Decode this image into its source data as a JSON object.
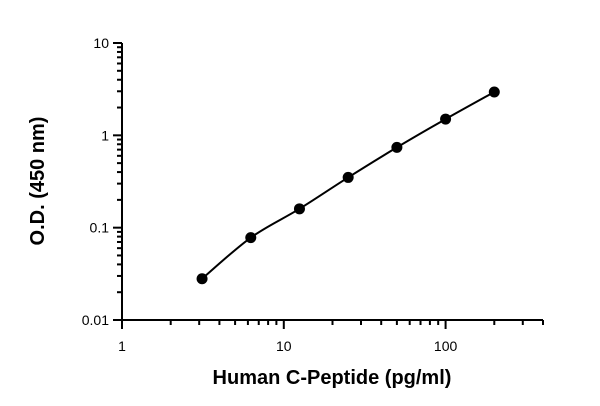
{
  "chart_data": {
    "type": "scatter",
    "xlabel": "Human C-Peptide (pg/ml)",
    "ylabel": "O.D. (450 nm)",
    "x_scale": "log",
    "y_scale": "log",
    "xlim": [
      1,
      400
    ],
    "ylim": [
      0.01,
      10
    ],
    "x_ticks": [
      {
        "value": 1,
        "label": "1"
      },
      {
        "value": 10,
        "label": "10"
      },
      {
        "value": 100,
        "label": "100"
      }
    ],
    "y_ticks": [
      {
        "value": 0.01,
        "label": "0.01"
      },
      {
        "value": 0.1,
        "label": "0.1"
      },
      {
        "value": 1,
        "label": "1"
      },
      {
        "value": 10,
        "label": "10"
      }
    ],
    "grid": false,
    "legend": "none",
    "series": [
      {
        "x": [
          3.125,
          6.25,
          12.5,
          25,
          50,
          100,
          200
        ],
        "y": [
          0.028,
          0.078,
          0.16,
          0.35,
          0.74,
          1.5,
          2.95
        ],
        "fit_curve": true,
        "color": "#000000"
      }
    ]
  }
}
